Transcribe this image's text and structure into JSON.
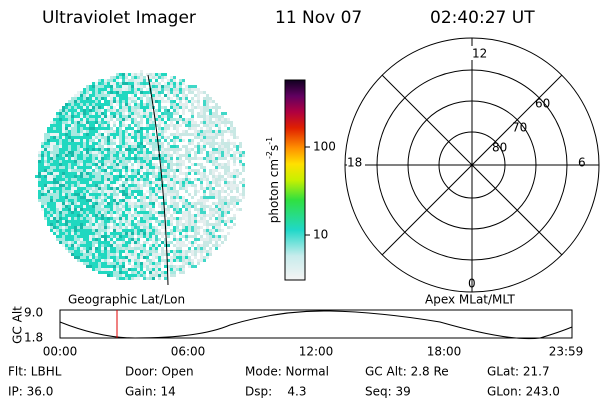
{
  "header": {
    "title": "Ultraviolet Imager",
    "date": "11 Nov 07",
    "time": "02:40:27 UT"
  },
  "image": {
    "label": "Geographic Lat/Lon"
  },
  "colorbar": {
    "ticks": [
      "100",
      "10"
    ],
    "unit": {
      "base": "photon cm",
      "exp1": "-2",
      "mid": "s",
      "exp2": "-1"
    }
  },
  "polar": {
    "label": "Apex MLat/MLT",
    "mlt": {
      "top": "12",
      "left": "18",
      "right": "6",
      "bottom": "0"
    },
    "mlat": [
      "60",
      "70",
      "80"
    ]
  },
  "timeline": {
    "axis_label": "GC Alt",
    "y_labels": [
      "9.0",
      "1.8"
    ],
    "x_labels": [
      "00:00",
      "06:00",
      "12:00",
      "18:00",
      "23:59"
    ]
  },
  "info": [
    [
      "Flt: LBHL",
      "Door: Open",
      "Mode: Normal",
      "GC Alt: 2.8 Re",
      "GLat: 21.7"
    ],
    [
      "IP: 36.0",
      "Gain: 14",
      "Dsp:    4.3",
      "Seq: 39",
      "GLon: 243.0"
    ]
  ]
}
